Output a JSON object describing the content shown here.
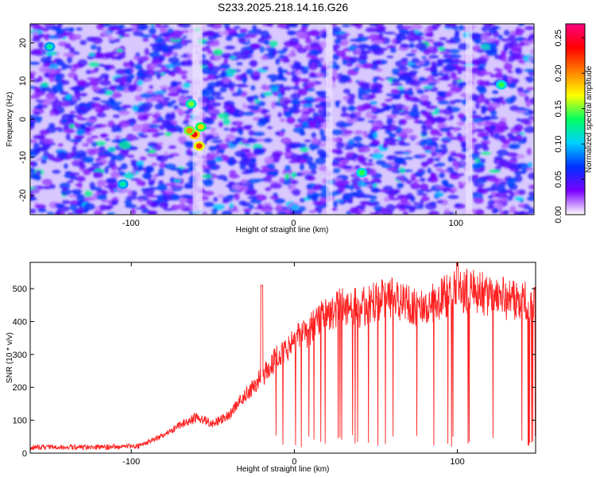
{
  "title": "S233.2025.218.14.16.G26",
  "chart_data": [
    {
      "type": "heatmap",
      "xlabel": "Height of straight line (km)",
      "ylabel": "Frequency (Hz)",
      "xlim": [
        -162,
        148
      ],
      "ylim": [
        -25,
        25
      ],
      "xticks": [
        "-100",
        "0",
        "100"
      ],
      "yticks": [
        "-20",
        "-10",
        "0",
        "10",
        "20"
      ],
      "colorbar": {
        "label": "Normalized spectral amplitude",
        "range": [
          0,
          0.27
        ],
        "ticks": [
          "0.00",
          "0.05",
          "0.10",
          "0.15",
          "0.20",
          "0.25"
        ],
        "colors": [
          "#ffffff",
          "#7a00ff",
          "#0030ff",
          "#00d0ff",
          "#00ff60",
          "#ffff00",
          "#ff8000",
          "#ff0000",
          "#ff0080"
        ]
      },
      "hotspots": [
        {
          "x": -61,
          "y": -4,
          "amplitude": 0.24
        },
        {
          "x": -58,
          "y": -7,
          "amplitude": 0.22
        },
        {
          "x": -64,
          "y": -3,
          "amplitude": 0.2
        },
        {
          "x": -57,
          "y": -2,
          "amplitude": 0.18
        },
        {
          "x": -63,
          "y": 4,
          "amplitude": 0.15
        },
        {
          "x": 42,
          "y": -14,
          "amplitude": 0.14
        },
        {
          "x": 128,
          "y": 9,
          "amplitude": 0.14
        },
        {
          "x": -105,
          "y": -17,
          "amplitude": 0.12
        },
        {
          "x": -150,
          "y": 19,
          "amplitude": 0.12
        }
      ],
      "gaps": [
        {
          "x": -59,
          "half_width": 3
        },
        {
          "x": 22,
          "half_width": 2
        },
        {
          "x": 108,
          "half_width": 2
        }
      ]
    },
    {
      "type": "line",
      "xlabel": "Height of straight line (km)",
      "ylabel": "SNR (10 * v/v)",
      "xlim": [
        -162,
        148
      ],
      "ylim": [
        0,
        580
      ],
      "xticks": [
        "-100",
        "0",
        "100"
      ],
      "yticks": [
        "0",
        "100",
        "200",
        "300",
        "400",
        "500"
      ],
      "color": "#ff2020",
      "profile": {
        "x": [
          -162,
          -120,
          -95,
          -80,
          -70,
          -60,
          -50,
          -40,
          -30,
          -20,
          -10,
          0,
          10,
          20,
          30,
          40,
          50,
          60,
          70,
          80,
          90,
          100,
          110,
          120,
          130,
          140,
          148
        ],
        "y": [
          18,
          18,
          22,
          55,
          85,
          110,
          90,
          115,
          175,
          230,
          300,
          340,
          380,
          420,
          450,
          440,
          465,
          470,
          450,
          440,
          470,
          495,
          490,
          480,
          470,
          460,
          450
        ]
      },
      "peaks": [
        {
          "x": -20,
          "y": 510
        },
        {
          "x": 100,
          "y": 580
        }
      ],
      "dropout_start_x": -28
    }
  ]
}
